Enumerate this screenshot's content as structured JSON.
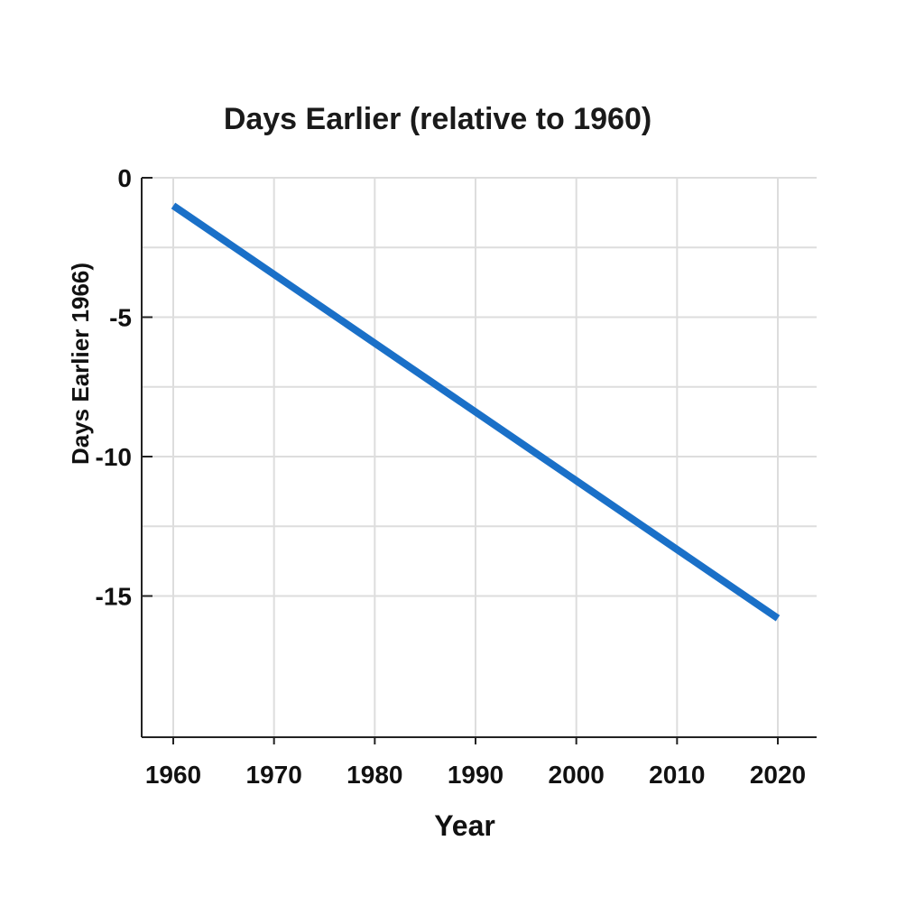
{
  "chart_data": {
    "type": "line",
    "title": "Days Earlier (relative to 1960)",
    "xlabel": "Year",
    "ylabel": "Days Earlier 1966)",
    "xlim": [
      1960,
      2020
    ],
    "ylim": [
      -16,
      0
    ],
    "x_ticks": [
      1960,
      1970,
      1980,
      1990,
      2000,
      2010,
      2020
    ],
    "x_tick_labels": [
      "1960",
      "1970",
      "1980",
      "1990",
      "2000",
      "2010",
      "2020"
    ],
    "y_ticks": [
      0,
      -5,
      -10,
      -15
    ],
    "y_tick_labels": [
      "0",
      "-5",
      "-10",
      "-15"
    ],
    "y_minor_grid": [
      -2.5,
      -7.5,
      -12.5
    ],
    "grid": true,
    "series": [
      {
        "color": "#1a70c8",
        "x": [
          1960,
          2020
        ],
        "y": [
          -1,
          -15.8
        ]
      }
    ]
  }
}
